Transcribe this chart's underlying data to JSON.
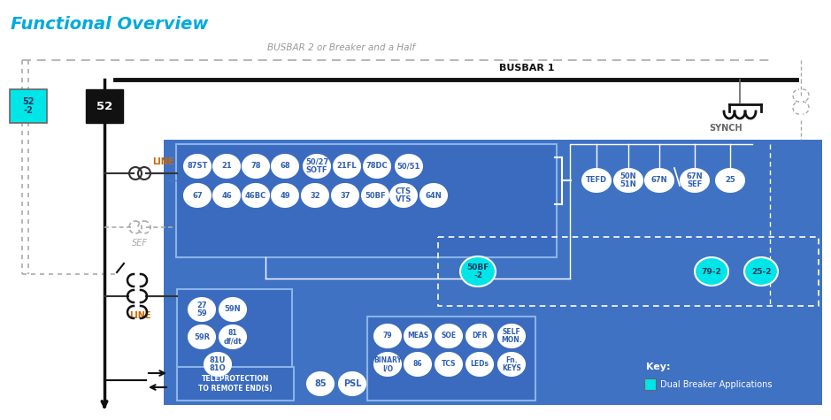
{
  "title": "Functional Overview",
  "busbar1_label": "BUSBAR 1",
  "busbar2_label": "BUSBAR 2 or Breaker and a Half",
  "synch_label": "SYNCH",
  "line_label": "LINE",
  "sef_label": "SEF",
  "line2_label": "LINE",
  "teleprotection_label": "TELEPROTECTION\nTO REMOTE END(S)",
  "key_label": "Key:",
  "dual_breaker_label": "Dual Breaker Applications",
  "row1_circles": [
    "87ST",
    "21",
    "78",
    "68",
    "50/27\nSOTF",
    "21FL",
    "78DC",
    "50/51"
  ],
  "row2_circles": [
    "67",
    "46",
    "46BC",
    "49",
    "32",
    "37",
    "50BF",
    "CTS\nVTS",
    "64N"
  ],
  "right_circles": [
    "TEFD",
    "50N\n51N",
    "67N",
    "67N\nSEF",
    "25"
  ],
  "sef_circles_r1": [
    "27\n59",
    "59N"
  ],
  "sef_circles_r2": [
    "59R",
    "81\ndf/dt"
  ],
  "sef_circles_r3": [
    "81U\n81O"
  ],
  "io_circles_row1": [
    "79",
    "MEAS",
    "SOE",
    "DFR",
    "SELF\nMON."
  ],
  "io_circles_row2": [
    "BINARY\nI/O",
    "86",
    "TCS",
    "LEDs",
    "Fn.\nKEYS"
  ],
  "cyan_circles_labels": [
    "50BF\n-2",
    "79-2",
    "25-2"
  ],
  "misc_circles": [
    "85",
    "PSL"
  ],
  "bg_blue": "#4072c4",
  "mid_blue": "#3a6bbf",
  "inner_blue": "#4a7dd4",
  "cyan": "#00e5e8",
  "white": "#ffffff",
  "black": "#111111",
  "gray": "#aaaaaa",
  "dark_gray": "#666666",
  "orange": "#cc6600",
  "title_color": "#00aadd",
  "text_on_blue": "#e8f0ff",
  "circle_text": "#3060b0"
}
